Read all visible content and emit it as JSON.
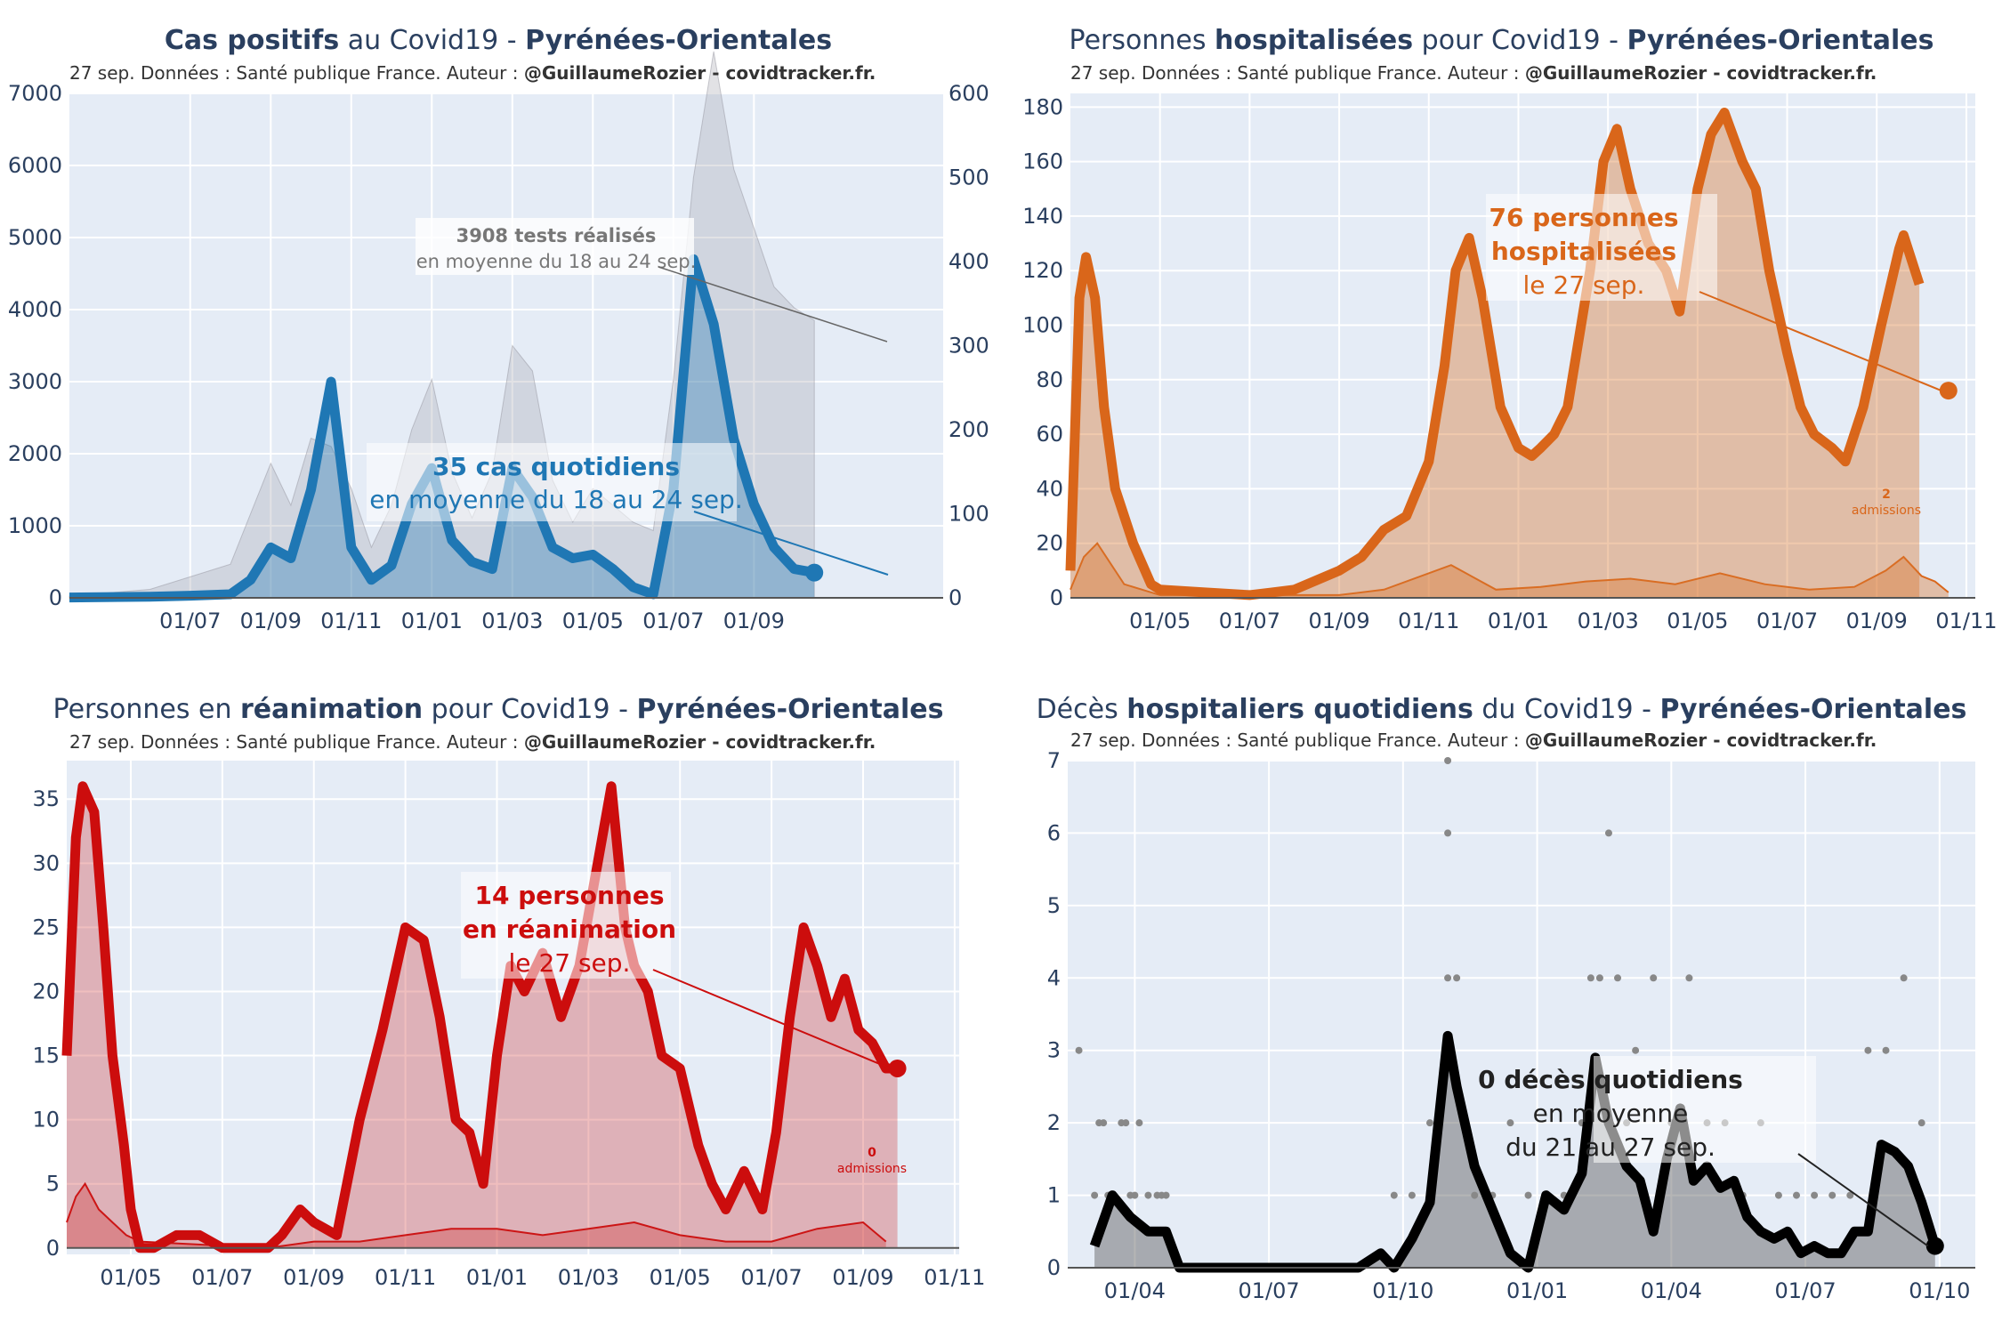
{
  "source_prefix": "27 sep. Données : Santé publique France. Auteur : ",
  "source_author": "@GuillaumeRozier - covidtracker.fr.",
  "chart_data": [
    {
      "id": "cas",
      "type": "area",
      "title_parts": [
        {
          "text": "Cas positifs",
          "bold": true
        },
        {
          "text": " au Covid19 - ",
          "bold": false
        },
        {
          "text": "Pyrénées-Orientales",
          "bold": true
        }
      ],
      "color": "#1f77b4",
      "fill": "rgba(31,119,180,0.35)",
      "xlabels": [
        "01/07",
        "01/09",
        "01/11",
        "01/01",
        "01/03",
        "01/05",
        "01/07",
        "01/09"
      ],
      "x_tick_positions": [
        1,
        3,
        5,
        7,
        9,
        11,
        13,
        15
      ],
      "xlim": [
        -2,
        19.7
      ],
      "ylim": [
        0,
        7000
      ],
      "yticks": [
        0,
        1000,
        2000,
        3000,
        4000,
        5000,
        6000,
        7000
      ],
      "y2lim": [
        0,
        600
      ],
      "y2ticks": [
        0,
        100,
        200,
        300,
        400,
        500,
        600
      ],
      "x": [
        -2,
        0,
        1,
        2,
        2.5,
        3,
        3.5,
        4,
        4.5,
        5,
        5.5,
        6,
        6.5,
        7,
        7.5,
        8,
        8.5,
        9,
        9.5,
        10,
        10.5,
        11,
        11.5,
        12,
        12.5,
        13,
        13.5,
        14,
        14.5,
        15,
        15.5,
        16,
        16.5
      ],
      "values": [
        5,
        15,
        30,
        50,
        250,
        700,
        550,
        1500,
        3000,
        700,
        250,
        450,
        1300,
        1800,
        800,
        500,
        400,
        1800,
        1400,
        700,
        550,
        600,
        400,
        150,
        50,
        1500,
        4700,
        3800,
        2200,
        1300,
        700,
        400,
        350
      ],
      "tests_values": [
        2,
        10,
        25,
        40,
        100,
        160,
        110,
        190,
        180,
        130,
        60,
        110,
        200,
        260,
        150,
        95,
        150,
        300,
        270,
        140,
        90,
        130,
        110,
        90,
        80,
        260,
        500,
        650,
        510,
        440,
        370,
        345,
        330
      ],
      "annotation": {
        "value_label": "35 cas quotidiens",
        "detail": "en moyenne du 18 au 24 sep."
      },
      "annotation2": {
        "value_label": "3908 tests réalisés",
        "detail": "en moyenne du 18 au 24 sep."
      }
    },
    {
      "id": "hosp",
      "type": "area",
      "title_parts": [
        {
          "text": "Personnes ",
          "bold": false
        },
        {
          "text": "hospitalisées",
          "bold": true
        },
        {
          "text": " pour Covid19 - ",
          "bold": false
        },
        {
          "text": "Pyrénées-Orientales",
          "bold": true
        }
      ],
      "color": "#d9661a",
      "fill": "rgba(217,120,50,0.4)",
      "xlabels": [
        "01/05",
        "01/07",
        "01/09",
        "01/11",
        "01/01",
        "01/03",
        "01/05",
        "01/07",
        "01/09",
        "01/11"
      ],
      "x_tick_positions": [
        2,
        4,
        6,
        8,
        10,
        12,
        14,
        16,
        18,
        20
      ],
      "xlim": [
        0,
        20.2
      ],
      "ylim": [
        0,
        185
      ],
      "yticks": [
        0,
        20,
        40,
        60,
        80,
        100,
        120,
        140,
        160,
        180
      ],
      "x": [
        0,
        0.2,
        0.35,
        0.55,
        0.75,
        1.0,
        1.4,
        1.8,
        2.0,
        3.0,
        4.0,
        4.5,
        5.0,
        6.0,
        6.5,
        7.0,
        7.5,
        8.0,
        8.35,
        8.6,
        8.9,
        9.2,
        9.6,
        10.0,
        10.3,
        10.5,
        10.8,
        11.1,
        11.3,
        11.6,
        11.9,
        12.2,
        12.5,
        12.9,
        13.3,
        13.6,
        14.0,
        14.3,
        14.6,
        15.0,
        15.3,
        15.6,
        16.0,
        16.3,
        16.6,
        17.0,
        17.3,
        17.7,
        18.1,
        18.5,
        18.6,
        18.95
      ],
      "values": [
        10,
        110,
        125,
        110,
        70,
        40,
        20,
        5,
        3,
        2,
        1,
        2,
        3,
        10,
        15,
        25,
        30,
        50,
        85,
        120,
        132,
        110,
        70,
        55,
        52,
        55,
        60,
        70,
        90,
        120,
        160,
        172,
        150,
        130,
        120,
        105,
        150,
        170,
        178,
        160,
        150,
        120,
        90,
        70,
        60,
        55,
        50,
        70,
        100,
        128,
        133,
        115
      ],
      "admissions_x": [
        0,
        0.3,
        0.6,
        1.2,
        2,
        6,
        7,
        8.5,
        9.5,
        10.5,
        11.5,
        12.5,
        13.5,
        14.5,
        15.5,
        16.5,
        17.5,
        18.2,
        18.6,
        19,
        19.3,
        19.6
      ],
      "admissions_values": [
        3,
        15,
        20,
        5,
        1,
        1,
        3,
        12,
        3,
        4,
        6,
        7,
        5,
        9,
        5,
        3,
        4,
        10,
        15,
        8,
        6,
        2
      ],
      "last_point": {
        "x": 19.6,
        "y": 76
      },
      "annotation": {
        "value_line1": "76 personnes",
        "value_line2": "hospitalisées",
        "detail": "le 27 sep."
      },
      "admissions_label": {
        "value": "2",
        "text": "admissions"
      }
    },
    {
      "id": "rea",
      "type": "area",
      "title_parts": [
        {
          "text": "Personnes en ",
          "bold": false
        },
        {
          "text": "réanimation",
          "bold": true
        },
        {
          "text": " pour Covid19 - ",
          "bold": false
        },
        {
          "text": "Pyrénées-Orientales",
          "bold": true
        }
      ],
      "color": "#cc0d0d",
      "fill": "rgba(204,40,40,0.3)",
      "xlabels": [
        "01/05",
        "01/07",
        "01/09",
        "01/11",
        "01/01",
        "01/03",
        "01/05",
        "01/07",
        "01/09",
        "01/11"
      ],
      "x_tick_positions": [
        2,
        4,
        6,
        8,
        10,
        12,
        14,
        16,
        18,
        20
      ],
      "xlim": [
        0.6,
        20.1
      ],
      "ylim": [
        -0.5,
        38
      ],
      "yticks": [
        0,
        5,
        10,
        15,
        20,
        25,
        30,
        35
      ],
      "x": [
        0.6,
        0.8,
        0.95,
        1.2,
        1.4,
        1.6,
        1.85,
        2.0,
        2.2,
        2.5,
        3.0,
        3.5,
        4.0,
        5.0,
        5.3,
        5.7,
        6.0,
        6.5,
        7.0,
        7.5,
        8.0,
        8.4,
        8.75,
        9.1,
        9.4,
        9.7,
        10.0,
        10.3,
        10.6,
        11.0,
        11.4,
        11.8,
        12.2,
        12.5,
        12.8,
        13.0,
        13.3,
        13.6,
        14.0,
        14.4,
        14.7,
        15.0,
        15.4,
        15.8,
        16.1,
        16.4,
        16.7,
        17.0,
        17.3,
        17.6,
        17.9,
        18.2,
        18.5,
        18.75
      ],
      "values": [
        15,
        32,
        36,
        34,
        25,
        15,
        8,
        3,
        0,
        0,
        1,
        1,
        0,
        0,
        1,
        3,
        2,
        1,
        10,
        17,
        25,
        24,
        18,
        10,
        9,
        5,
        15,
        22,
        20,
        23,
        18,
        22,
        30,
        36,
        25,
        22,
        20,
        15,
        14,
        8,
        5,
        3,
        6,
        3,
        9,
        18,
        25,
        22,
        18,
        21,
        17,
        16,
        14,
        14
      ],
      "admissions_x": [
        0.6,
        0.8,
        1.0,
        1.3,
        1.6,
        1.9,
        2.2,
        5.0,
        6.0,
        7.0,
        8.0,
        9.0,
        10.0,
        11.0,
        12.0,
        13.0,
        14.0,
        15.0,
        16.0,
        17.0,
        18.0,
        18.5
      ],
      "admissions_values": [
        2,
        4,
        5,
        3,
        2,
        1,
        0.5,
        0,
        0.5,
        0.5,
        1,
        1.5,
        1.5,
        1,
        1.5,
        2,
        1,
        0.5,
        0.5,
        1.5,
        2,
        0.5
      ],
      "last_point": {
        "x": 18.75,
        "y": 14
      },
      "annotation": {
        "value_line1": "14 personnes",
        "value_line2": "en réanimation",
        "detail": "le 27 sep."
      },
      "admissions_label": {
        "value": "0",
        "text": "admissions"
      }
    },
    {
      "id": "deces",
      "type": "line",
      "title_parts": [
        {
          "text": "Décès ",
          "bold": false
        },
        {
          "text": "hospitaliers quotidiens",
          "bold": true
        },
        {
          "text": " du Covid19 - ",
          "bold": false
        },
        {
          "text": "Pyrénées-Orientales",
          "bold": true
        }
      ],
      "color": "#000000",
      "fill": "rgba(90,90,90,0.45)",
      "xlabels": [
        "01/04",
        "01/07",
        "01/10",
        "01/01",
        "01/04",
        "01/07",
        "01/10"
      ],
      "x_tick_positions": [
        1,
        4,
        7,
        10,
        13,
        16,
        19
      ],
      "xlim": [
        -0.5,
        19.8
      ],
      "ylim": [
        0,
        7
      ],
      "yticks": [
        0,
        1,
        2,
        3,
        4,
        5,
        6,
        7
      ],
      "x": [
        0.1,
        0.5,
        0.9,
        1.3,
        1.7,
        2.0,
        2.3,
        3.0,
        4.0,
        5.0,
        6.0,
        6.5,
        6.8,
        7.2,
        7.6,
        8.0,
        8.2,
        8.6,
        9.0,
        9.4,
        9.8,
        10.2,
        10.6,
        11.0,
        11.3,
        11.6,
        12.0,
        12.3,
        12.6,
        12.9,
        13.2,
        13.5,
        13.8,
        14.1,
        14.4,
        14.7,
        15.0,
        15.3,
        15.6,
        15.9,
        16.2,
        16.5,
        16.8,
        17.1,
        17.4,
        17.7,
        18.0,
        18.3,
        18.6,
        18.9
      ],
      "values": [
        0.3,
        1.0,
        0.7,
        0.5,
        0.5,
        0.0,
        0.0,
        0.0,
        0.0,
        0.0,
        0.0,
        0.2,
        0.0,
        0.4,
        0.9,
        3.2,
        2.5,
        1.4,
        0.8,
        0.2,
        0.0,
        1.0,
        0.8,
        1.3,
        2.9,
        2.0,
        1.4,
        1.2,
        0.5,
        1.5,
        2.2,
        1.2,
        1.4,
        1.1,
        1.2,
        0.7,
        0.5,
        0.4,
        0.5,
        0.2,
        0.3,
        0.2,
        0.2,
        0.5,
        0.5,
        1.7,
        1.6,
        1.4,
        0.9,
        0.3
      ],
      "scatter_x": [
        -0.25,
        0.1,
        0.3,
        0.5,
        0.7,
        0.9,
        1.1,
        1.3,
        1.5,
        1.7,
        6.8,
        7.2,
        7.6,
        7.8,
        8.0,
        8.0,
        8.0,
        8.2,
        8.4,
        8.6,
        9.0,
        9.4,
        9.8,
        10.2,
        10.6,
        11.0,
        11.2,
        11.4,
        11.6,
        11.8,
        12.0,
        12.2,
        12.6,
        13.0,
        13.4,
        13.8,
        14.2,
        14.6,
        15.0,
        15.4,
        15.8,
        16.2,
        16.6,
        17.0,
        17.4,
        17.8,
        18.2,
        18.6,
        0.2,
        0.4,
        0.8,
        1.0,
        1.6
      ],
      "scatter_values": [
        3,
        1,
        2,
        1,
        2,
        1,
        2,
        1,
        1,
        1,
        1,
        1,
        2,
        2,
        4,
        6,
        7,
        4,
        2,
        1,
        1,
        2,
        1,
        1,
        1,
        2,
        4,
        4,
        6,
        4,
        2,
        3,
        4,
        2,
        4,
        2,
        2,
        1,
        2,
        1,
        1,
        1,
        1,
        1,
        3,
        3,
        4,
        2,
        2,
        1,
        2,
        1,
        1
      ],
      "last_point": {
        "x": 18.9,
        "y": 0.3
      },
      "annotation": {
        "value_line1": "0 décès quotidiens",
        "value_line2": "en moyenne",
        "detail": "du 21 au 27 sep."
      }
    }
  ]
}
